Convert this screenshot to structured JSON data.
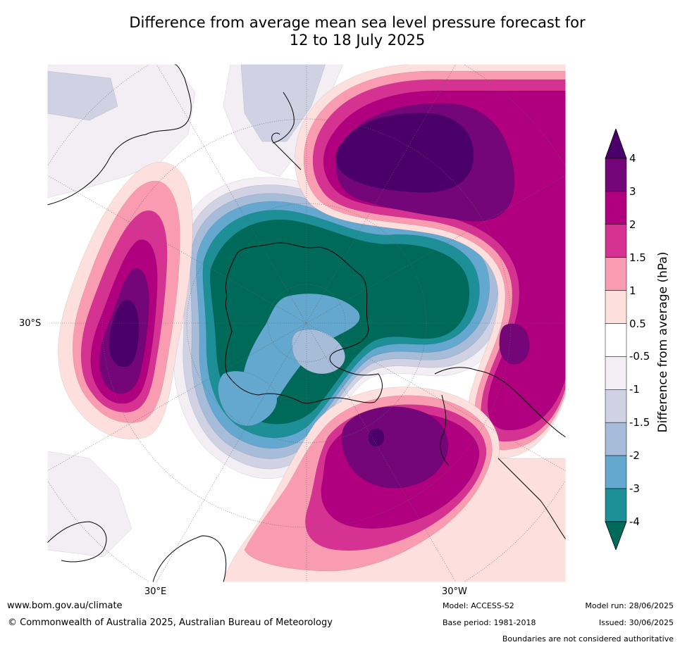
{
  "title_line1": "Difference from average mean sea level pressure forecast for",
  "title_line2": "12 to 18 July 2025",
  "map_labels": {
    "lat_30s": "30°S",
    "lon_30e": "30°E",
    "lon_30w": "30°W"
  },
  "colorbar": {
    "title": "Difference from average (hPa)",
    "ticks": [
      "4",
      "3",
      "2",
      "1.5",
      "1",
      "0.5",
      "-0.5",
      "-1",
      "-1.5",
      "-2",
      "-3",
      "-4"
    ],
    "colors": {
      "above_4": "#4a0068",
      "3_to_4": "#74067a",
      "2_to_3": "#b0007f",
      "1.5_to_2": "#d63292",
      "1_to_1.5": "#f99bb1",
      "0.5_to_1": "#fddfdd",
      "neutral": "#ffffff",
      "-1_to_-0.5": "#f2eef4",
      "-1.5_to_-1": "#d0d2e3",
      "-2_to_-1.5": "#a6bcd9",
      "-3_to_-2": "#64a7cf",
      "-4_to_-3": "#1c8f97",
      "below_-4": "#006a5a"
    }
  },
  "footer": {
    "url": "www.bom.gov.au/climate",
    "copyright": "© Commonwealth of Australia 2025, Australian Bureau of Meteorology",
    "model": "Model: ACCESS-S2",
    "base_period": "Base period: 1981-2018",
    "model_run": "Model run: 28/06/2025",
    "issued": "Issued: 30/06/2025",
    "disclaimer": "Boundaries are not considered authoritative"
  }
}
